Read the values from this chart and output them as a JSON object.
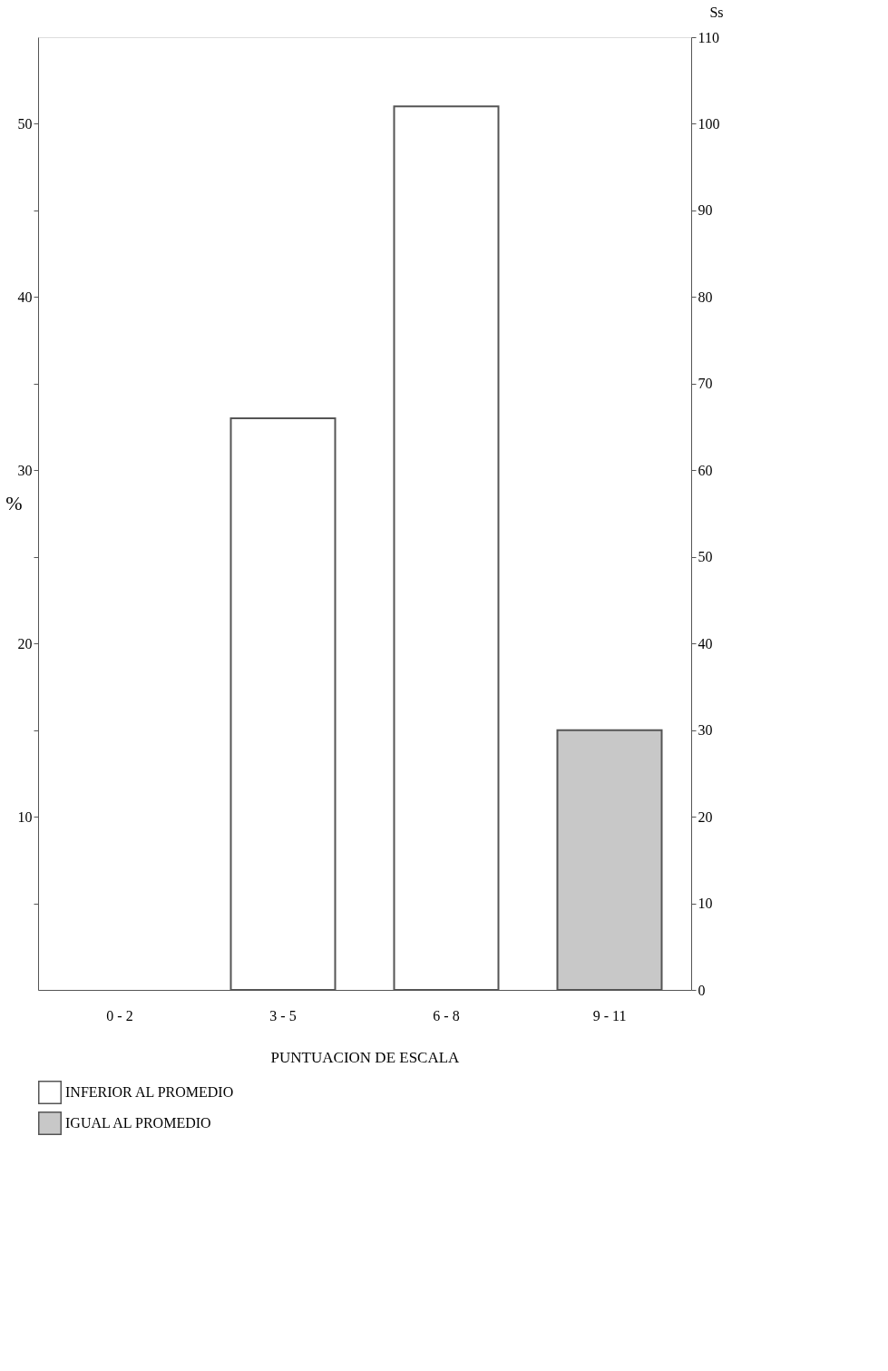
{
  "chart_data": {
    "type": "bar",
    "ylabel": "%",
    "y2label": "Ss",
    "xlabel": "PUNTUACION DE ESCALA",
    "categories": [
      "0 - 2",
      "3 - 5",
      "6 - 8",
      "9 - 11"
    ],
    "series": [
      {
        "name": "INFERIOR AL PROMEDIO",
        "color": "#ffffff",
        "values": [
          null,
          33,
          51,
          null
        ]
      },
      {
        "name": "IGUAL AL PROMEDIO",
        "color": "#c8c8c8",
        "values": [
          null,
          null,
          null,
          15
        ]
      }
    ],
    "ylim": [
      0,
      55
    ],
    "yticks": [
      {
        "value": 5,
        "label": null
      },
      10,
      {
        "value": 15,
        "label": null
      },
      20,
      {
        "value": 25,
        "label": null
      },
      30,
      {
        "value": 35,
        "label": null
      },
      40,
      {
        "value": 45,
        "label": null
      },
      50
    ],
    "y2lim": [
      0,
      110
    ],
    "y2ticks": [
      0,
      10,
      20,
      30,
      40,
      50,
      60,
      70,
      80,
      90,
      100,
      110
    ],
    "grid": false,
    "legend": "bottom"
  }
}
